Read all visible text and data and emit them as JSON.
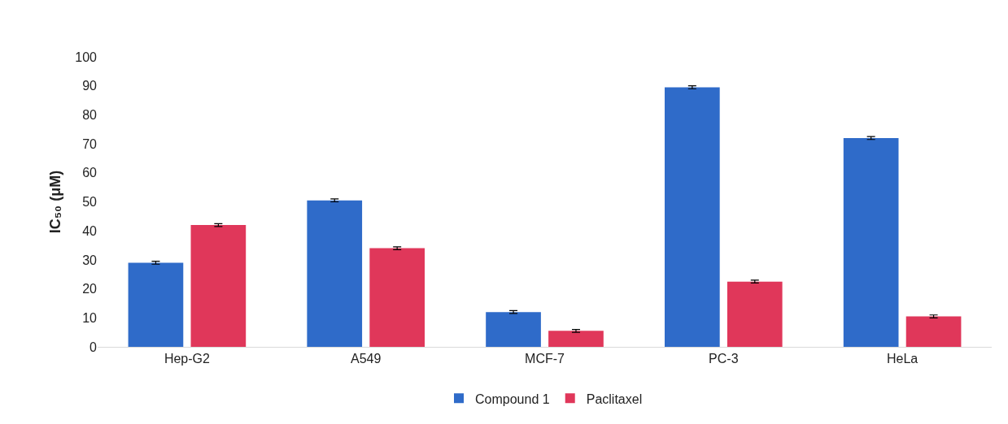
{
  "chart_data": {
    "type": "bar",
    "ylabel": "IC₅₀ (μM)",
    "categories": [
      "Hep-G2",
      "A549",
      "MCF-7",
      "PC-3",
      "HeLa"
    ],
    "series": [
      {
        "name": "Compound 1",
        "color": "#2f6bc9",
        "values": [
          29,
          50.5,
          12,
          89.5,
          72
        ],
        "errors": [
          0.5,
          0.5,
          0.5,
          0.5,
          0.5
        ]
      },
      {
        "name": "Paclitaxel",
        "color": "#e0375a",
        "values": [
          42,
          34,
          5.5,
          22.5,
          10.5
        ],
        "errors": [
          0.5,
          0.5,
          0.5,
          0.5,
          0.5
        ]
      }
    ],
    "ylim": [
      0,
      100
    ],
    "yticks": [
      0,
      10,
      20,
      30,
      40,
      50,
      60,
      70,
      80,
      90,
      100
    ],
    "grid": false,
    "legend": "bottom"
  }
}
